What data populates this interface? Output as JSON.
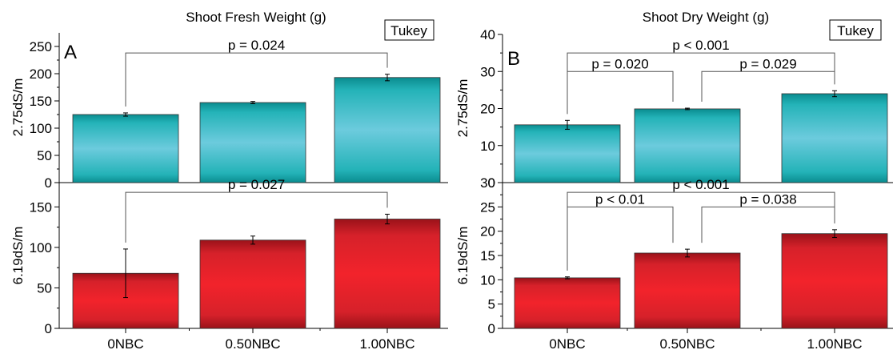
{
  "figure": {
    "panels": [
      {
        "letter": "A",
        "title": "Shoot Fresh Weight (g)"
      },
      {
        "letter": "B",
        "title": "Shoot Dry Weight (g)"
      }
    ],
    "tukey_label": "Tukey"
  },
  "chart_data": [
    {
      "id": "A-top",
      "type": "bar",
      "title": "Shoot Fresh Weight (g)",
      "ylabel": "2.75dS/m",
      "categories": [
        "0NBC",
        "0.50NBC",
        "1.00NBC"
      ],
      "values": [
        125,
        147,
        193
      ],
      "errors": [
        3,
        2,
        6
      ],
      "ylim": [
        0,
        275
      ],
      "yticks": [
        0,
        50,
        100,
        150,
        200,
        250
      ],
      "color": "#2fb9c2",
      "annotations": [
        {
          "text": "p = 0.024",
          "from": 0,
          "to": 2,
          "y": 238
        }
      ]
    },
    {
      "id": "A-bottom",
      "type": "bar",
      "ylabel": "6.19dS/m",
      "categories": [
        "0NBC",
        "0.50NBC",
        "1.00NBC"
      ],
      "values": [
        68,
        109,
        135
      ],
      "errors": [
        30,
        5,
        6
      ],
      "ylim": [
        0,
        180
      ],
      "yticks": [
        0,
        50,
        100,
        150
      ],
      "color": "#e8242a",
      "annotations": [
        {
          "text": "p = 0.027",
          "from": 0,
          "to": 2,
          "y": 168
        }
      ]
    },
    {
      "id": "B-top",
      "type": "bar",
      "title": "Shoot Dry Weight (g)",
      "ylabel": "2.75dS/m",
      "categories": [
        "0NBC",
        "0.50NBC",
        "1.00NBC"
      ],
      "values": [
        15.6,
        19.9,
        24.0
      ],
      "errors": [
        1.2,
        0.2,
        0.8
      ],
      "ylim": [
        0,
        40
      ],
      "yticks": [
        0,
        10,
        20,
        30,
        40
      ],
      "color": "#2fb9c2",
      "annotations": [
        {
          "text": "p < 0.001",
          "from": 0,
          "to": 2,
          "y": 35
        },
        {
          "text": "p = 0.020",
          "from": 0,
          "to": 1,
          "y": 30
        },
        {
          "text": "p = 0.029",
          "from": 1,
          "to": 2,
          "y": 30
        }
      ]
    },
    {
      "id": "B-bottom",
      "type": "bar",
      "ylabel": "6.19dS/m",
      "categories": [
        "0NBC",
        "0.50NBC",
        "1.00NBC"
      ],
      "values": [
        10.4,
        15.5,
        19.5
      ],
      "errors": [
        0.2,
        0.8,
        0.8
      ],
      "ylim": [
        0,
        30
      ],
      "yticks": [
        0,
        5,
        10,
        15,
        20,
        25,
        30
      ],
      "color": "#e8242a",
      "annotations": [
        {
          "text": "p < 0.001",
          "from": 0,
          "to": 2,
          "y": 28
        },
        {
          "text": "p < 0.01",
          "from": 0,
          "to": 1,
          "y": 25
        },
        {
          "text": "p = 0.038",
          "from": 1,
          "to": 2,
          "y": 25
        }
      ]
    }
  ]
}
